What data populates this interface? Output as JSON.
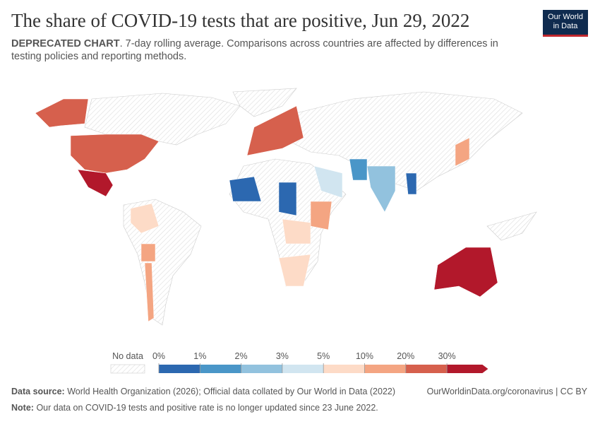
{
  "header": {
    "title": "The share of COVID-19 tests that are positive, Jun 29, 2022",
    "subtitle_lead": "DEPRECATED CHART",
    "subtitle": ". 7-day rolling average. Comparisons across countries are affected by differences in testing policies and reporting methods.",
    "logo": [
      "Our World",
      "in Data"
    ]
  },
  "legend": {
    "no_data": "No data",
    "ticks": [
      {
        "value": 0,
        "label": "0%"
      },
      {
        "value": 1,
        "label": "1%"
      },
      {
        "value": 2,
        "label": "2%"
      },
      {
        "value": 3,
        "label": "3%"
      },
      {
        "value": 5,
        "label": "5%"
      },
      {
        "value": 10,
        "label": "10%"
      },
      {
        "value": 20,
        "label": "20%"
      },
      {
        "value": 30,
        "label": "30%"
      }
    ],
    "colors": [
      "#2c68b0",
      "#4a96c8",
      "#92c2de",
      "#d1e5f0",
      "#fddbc7",
      "#f4a582",
      "#d6604d",
      "#b2182b"
    ]
  },
  "footer": {
    "source_label": "Data source:",
    "source": "World Health Organization (2026); Official data collated by Our World in Data (2022)",
    "url": "OurWorldinData.org/coronavirus | CC BY",
    "note_label": "Note:",
    "note": "Our data on COVID-19 tests and positive rate is no longer updated since 23 June 2022."
  }
}
